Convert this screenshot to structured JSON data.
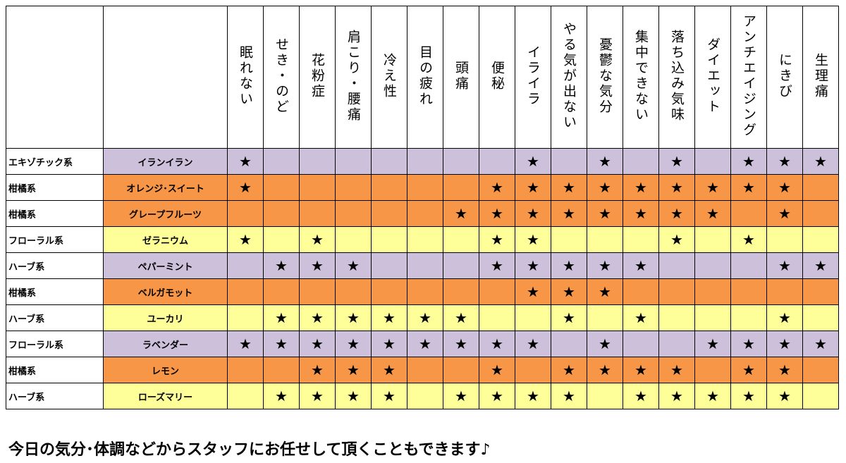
{
  "star_symbol": "★",
  "colors": {
    "purple": "#ccc0da",
    "orange": "#f79646",
    "yellow": "#ffff99"
  },
  "header": {
    "category": "",
    "name": "",
    "symptoms": [
      "眠れない",
      "せき・のど",
      "花粉症",
      "肩こり・腰痛",
      "冷え性",
      "目の疲れ",
      "頭痛",
      "便秘",
      "イライラ",
      "やる気が出ない",
      "憂鬱な気分",
      "集中できない",
      "落ち込み気味",
      "ダイエット",
      "アンチエイジング",
      "にきび",
      "生理痛"
    ]
  },
  "rows": [
    {
      "category": "エキゾチック系",
      "name": "イランイラン",
      "color": "purple",
      "marks": [
        1,
        0,
        0,
        0,
        0,
        0,
        0,
        0,
        1,
        0,
        1,
        0,
        1,
        0,
        1,
        1,
        1
      ]
    },
    {
      "category": "柑橘系",
      "name": "オレンジ･スイート",
      "color": "orange",
      "marks": [
        1,
        0,
        0,
        0,
        0,
        0,
        0,
        1,
        1,
        1,
        1,
        1,
        1,
        1,
        1,
        1,
        0
      ]
    },
    {
      "category": "柑橘系",
      "name": "グレープフルーツ",
      "color": "orange",
      "marks": [
        0,
        0,
        0,
        0,
        0,
        0,
        1,
        1,
        1,
        1,
        1,
        1,
        1,
        1,
        0,
        1,
        0
      ]
    },
    {
      "category": "フローラル系",
      "name": "ゼラニウム",
      "color": "yellow",
      "marks": [
        1,
        0,
        1,
        0,
        0,
        0,
        0,
        1,
        1,
        0,
        0,
        0,
        1,
        0,
        1,
        0,
        0
      ]
    },
    {
      "category": "ハーブ系",
      "name": "ペパーミント",
      "color": "purple",
      "marks": [
        0,
        1,
        1,
        1,
        0,
        0,
        0,
        1,
        1,
        1,
        1,
        1,
        0,
        0,
        0,
        1,
        1
      ]
    },
    {
      "category": "柑橘系",
      "name": "ベルガモット",
      "color": "orange",
      "marks": [
        0,
        0,
        0,
        0,
        0,
        0,
        0,
        0,
        1,
        1,
        1,
        0,
        0,
        0,
        0,
        0,
        0
      ]
    },
    {
      "category": "ハーブ系",
      "name": "ユーカリ",
      "color": "yellow",
      "marks": [
        0,
        1,
        1,
        1,
        1,
        1,
        1,
        0,
        0,
        1,
        0,
        1,
        0,
        0,
        0,
        1,
        0
      ]
    },
    {
      "category": "フローラル系",
      "name": "ラベンダー",
      "color": "purple",
      "marks": [
        1,
        1,
        1,
        1,
        1,
        1,
        1,
        1,
        1,
        0,
        1,
        0,
        0,
        1,
        1,
        1,
        1
      ]
    },
    {
      "category": "柑橘系",
      "name": "レモン",
      "color": "orange",
      "marks": [
        0,
        0,
        1,
        1,
        1,
        0,
        0,
        1,
        0,
        1,
        1,
        1,
        1,
        0,
        1,
        1,
        0
      ]
    },
    {
      "category": "ハーブ系",
      "name": "ローズマリー",
      "color": "yellow",
      "marks": [
        0,
        1,
        1,
        1,
        1,
        0,
        1,
        1,
        1,
        1,
        0,
        1,
        1,
        1,
        1,
        1,
        0
      ]
    }
  ],
  "footer": "今日の気分･体調などからスタッフにお任せして頂くこともできます♪"
}
